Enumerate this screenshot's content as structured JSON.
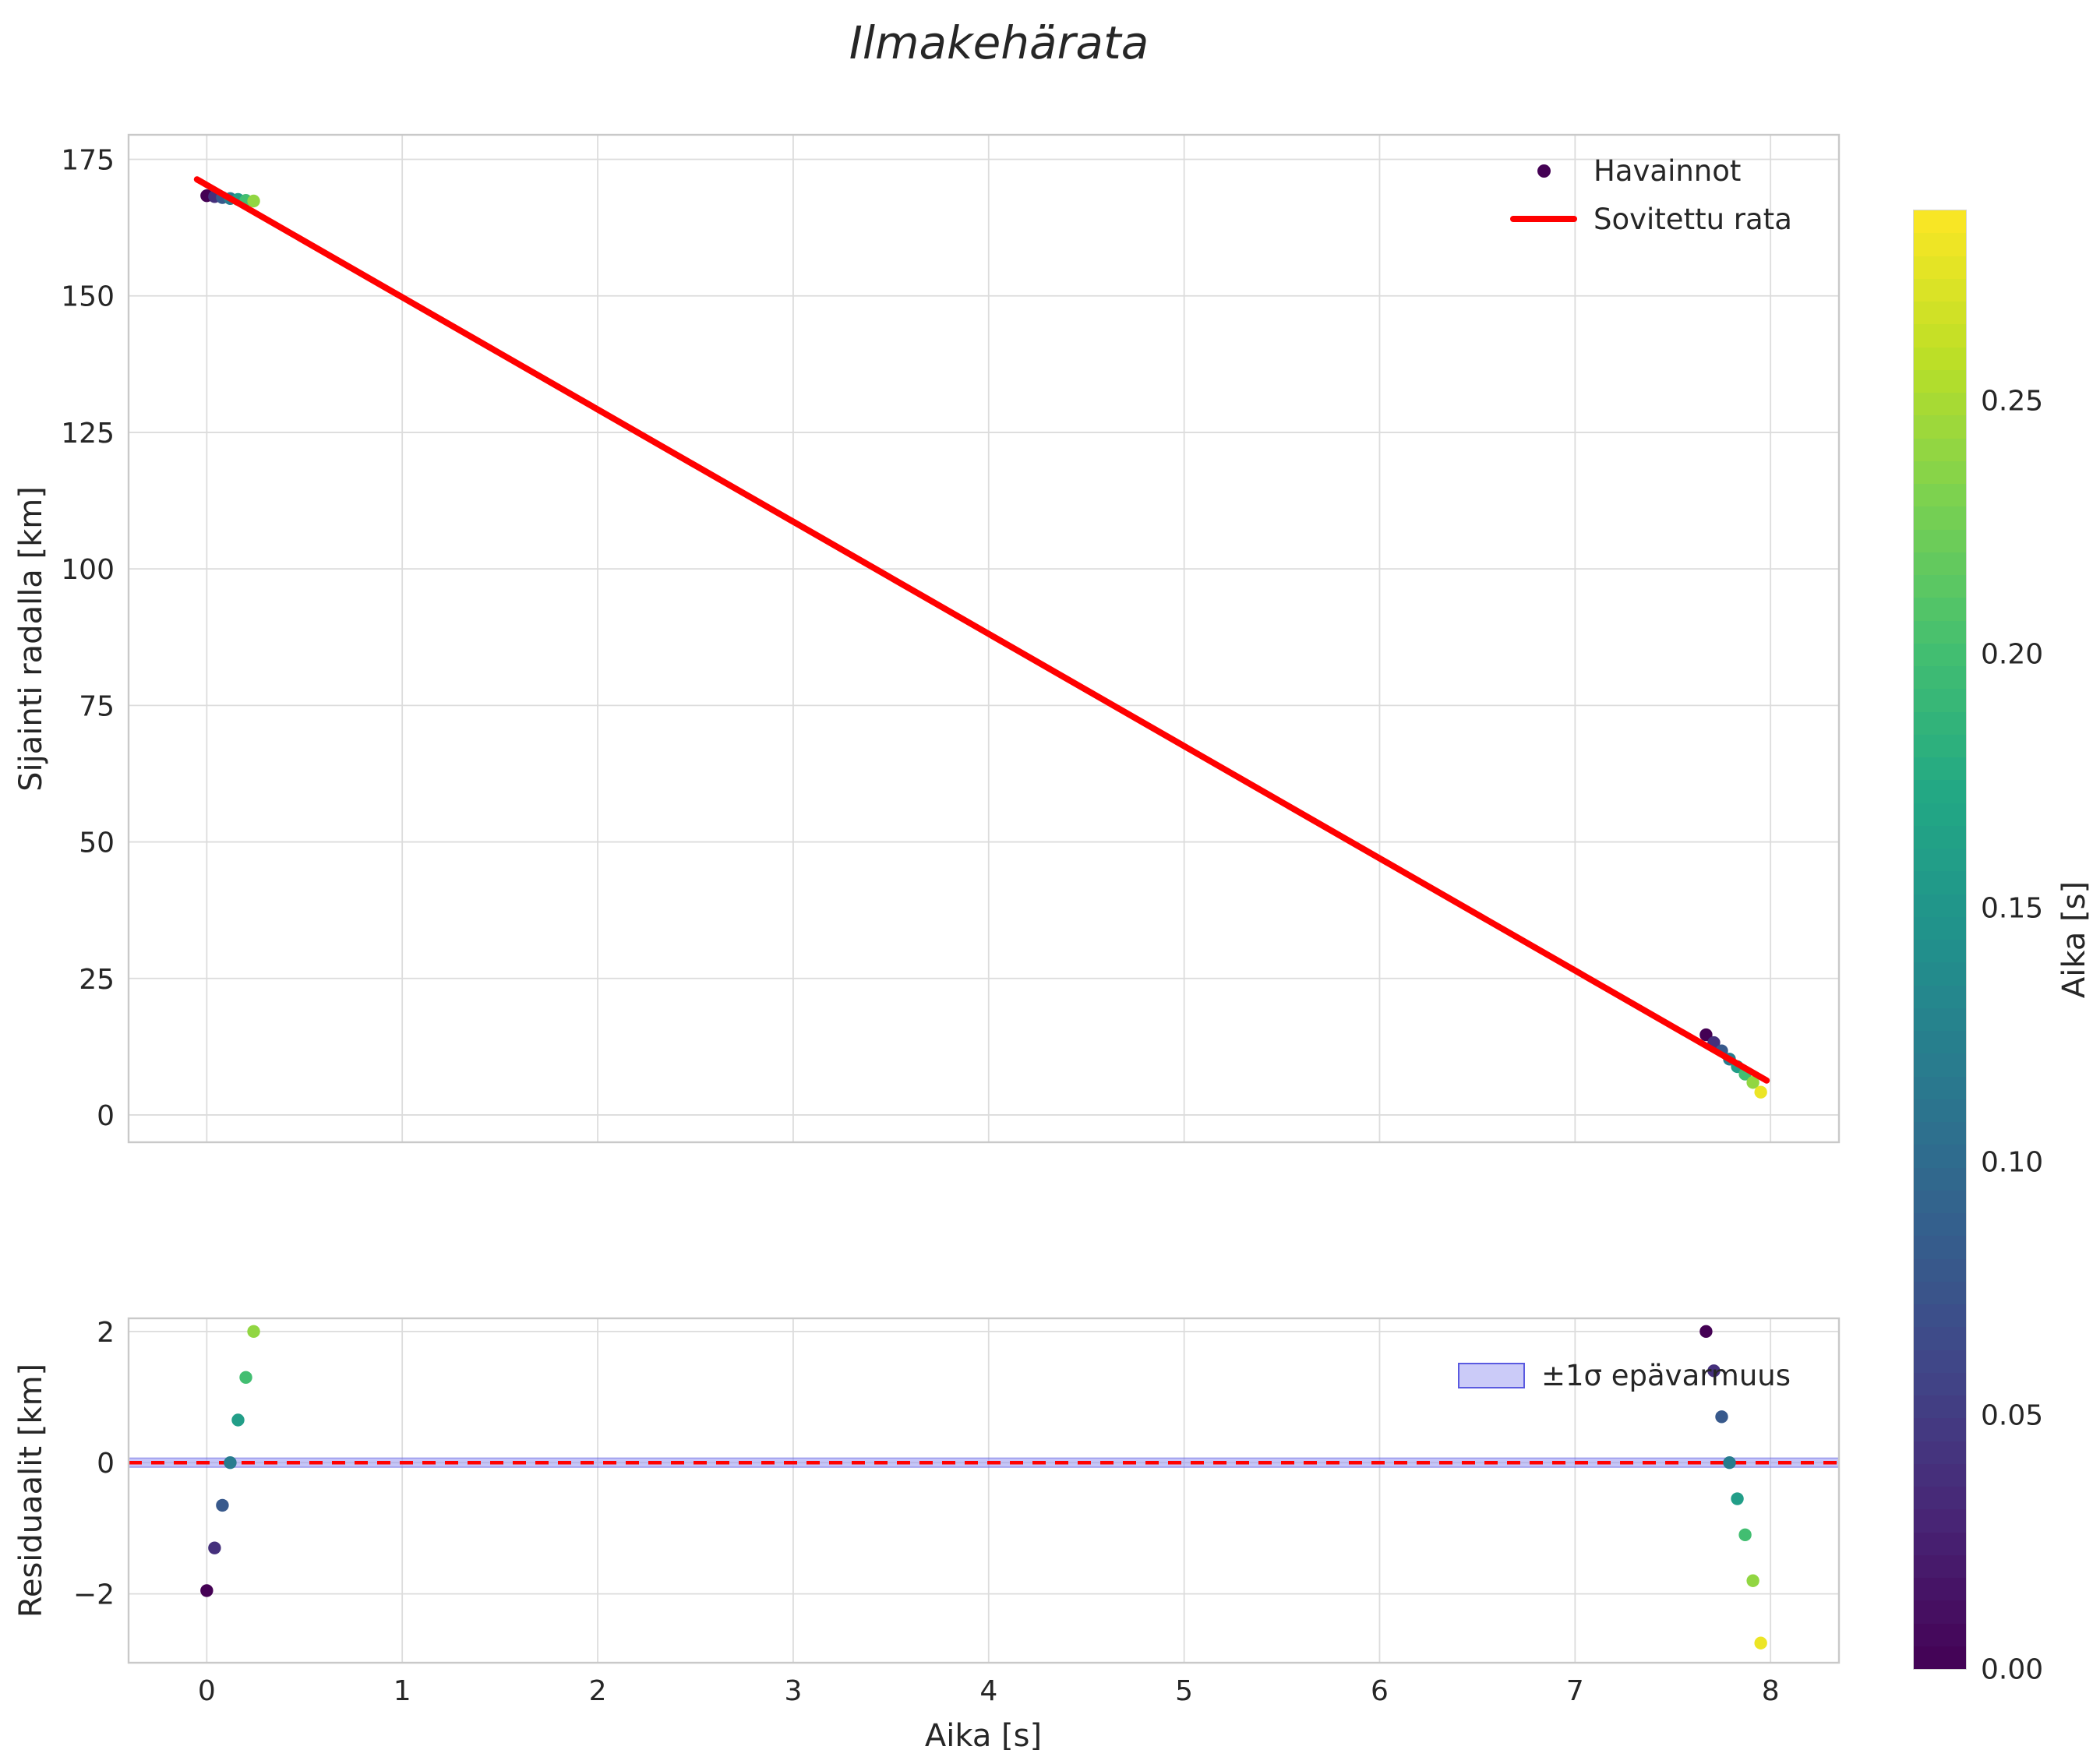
{
  "title": "Ilmakehärata",
  "styles": {
    "fit_color": "#ff0000",
    "grid_color": "#dcdcdc",
    "spine_color": "#c9c9c9",
    "text_color": "#262626",
    "band_fill": "#8c8cf0",
    "band_edge": "#5a5ae0",
    "legend_dot_color": "#440154"
  },
  "colorbar": {
    "label": "Aika [s]",
    "vmin": 0.0,
    "vmax": 0.2877,
    "tick_values": [
      0.0,
      0.05,
      0.1,
      0.15,
      0.2,
      0.25
    ],
    "tick_labels": [
      "0.00",
      "0.05",
      "0.10",
      "0.15",
      "0.20",
      "0.25"
    ],
    "colormap_name": "viridis",
    "colormap_stops": [
      "#440154",
      "#482475",
      "#414487",
      "#355f8d",
      "#2a788e",
      "#21918c",
      "#22a884",
      "#44bf70",
      "#7ad151",
      "#bddf26",
      "#fde725"
    ]
  },
  "chart_data": [
    {
      "name": "trajectory",
      "type": "scatter",
      "title": "Ilmakehärata",
      "xlabel": "",
      "ylabel": "Sijainti radalla [km]",
      "xlim": [
        -0.4,
        8.35
      ],
      "ylim": [
        -5,
        179.5
      ],
      "xtick_values": [
        0,
        1,
        2,
        3,
        4,
        5,
        6,
        7,
        8
      ],
      "xtick_labels": [],
      "ytick_values": [
        0,
        25,
        50,
        75,
        100,
        125,
        150,
        175
      ],
      "ytick_labels": [
        "0",
        "25",
        "50",
        "75",
        "100",
        "125",
        "150",
        "175"
      ],
      "grid": true,
      "legend": {
        "entries": [
          {
            "label": "Havainnot",
            "kind": "marker"
          },
          {
            "label": "Sovitettu rata",
            "kind": "line"
          }
        ]
      },
      "series": [
        {
          "name": "havainnot-points",
          "kind": "scatter",
          "x": [
            0.0,
            0.04,
            0.08,
            0.12,
            0.16,
            0.2,
            0.24,
            7.67,
            7.71,
            7.75,
            7.79,
            7.83,
            7.87,
            7.91,
            7.95
          ],
          "y": [
            168.35,
            168.18,
            168.01,
            167.83,
            167.66,
            167.49,
            167.37,
            14.68,
            13.26,
            11.74,
            10.22,
            8.84,
            7.47,
            5.95,
            4.18
          ],
          "c": [
            0.0,
            0.04,
            0.08,
            0.12,
            0.16,
            0.2,
            0.24,
            0.0,
            0.04,
            0.08,
            0.12,
            0.16,
            0.2,
            0.24,
            0.28
          ]
        },
        {
          "name": "sovitettu-rata-line",
          "kind": "line",
          "color": "#ff0000",
          "x": [
            -0.05,
            7.98
          ],
          "y": [
            171.33,
            6.31
          ]
        }
      ]
    },
    {
      "name": "residuals",
      "type": "scatter",
      "xlabel": "Aika [s]",
      "ylabel": "Residuaalit [km]",
      "xlim": [
        -0.4,
        8.35
      ],
      "ylim": [
        -3.05,
        2.2
      ],
      "xtick_values": [
        0,
        1,
        2,
        3,
        4,
        5,
        6,
        7,
        8
      ],
      "xtick_labels": [
        "0",
        "1",
        "2",
        "3",
        "4",
        "5",
        "6",
        "7",
        "8"
      ],
      "ytick_values": [
        -2,
        0,
        2
      ],
      "ytick_labels": [
        "−2",
        "0",
        "2"
      ],
      "grid": true,
      "band": {
        "ylo": -0.07,
        "yhi": 0.07,
        "label": "±1σ epävarmuus"
      },
      "zero_line": {
        "y": 0,
        "color": "#ff0000",
        "dash": true
      },
      "series": [
        {
          "name": "residual-points",
          "kind": "scatter",
          "x": [
            0.0,
            0.04,
            0.08,
            0.12,
            0.16,
            0.2,
            0.24,
            7.67,
            7.71,
            7.75,
            7.79,
            7.83,
            7.87,
            7.91,
            7.95
          ],
          "y": [
            -1.95,
            -1.3,
            -0.65,
            0.0,
            0.65,
            1.3,
            2.0,
            2.0,
            1.4,
            0.7,
            0.0,
            -0.55,
            -1.1,
            -1.8,
            -2.75
          ],
          "c": [
            0.0,
            0.04,
            0.08,
            0.12,
            0.16,
            0.2,
            0.24,
            0.0,
            0.04,
            0.08,
            0.12,
            0.16,
            0.2,
            0.24,
            0.28
          ]
        }
      ]
    }
  ]
}
